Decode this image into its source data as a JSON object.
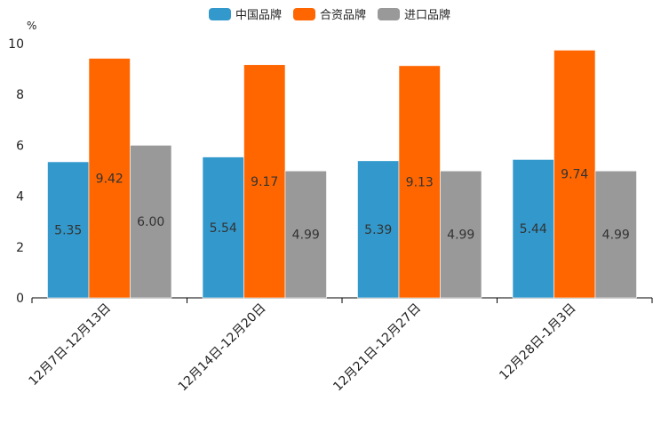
{
  "chart_data": {
    "type": "bar",
    "unit": "%",
    "categories": [
      "12月7日-12月13日",
      "12月14日-12月20日",
      "12月21日-12月27日",
      "12月28日-1月3日"
    ],
    "series": [
      {
        "name": "中国品牌",
        "color": "#3399cc",
        "values": [
          5.35,
          5.54,
          5.39,
          5.44
        ]
      },
      {
        "name": "合资品牌",
        "color": "#ff6600",
        "values": [
          9.42,
          9.17,
          9.13,
          9.74
        ]
      },
      {
        "name": "进口品牌",
        "color": "#999999",
        "values": [
          6.0,
          4.99,
          4.99,
          4.99
        ]
      }
    ],
    "ylim": [
      0,
      10
    ],
    "yticks": [
      0,
      2,
      4,
      6,
      8,
      10
    ],
    "legend_position": "top-center"
  }
}
